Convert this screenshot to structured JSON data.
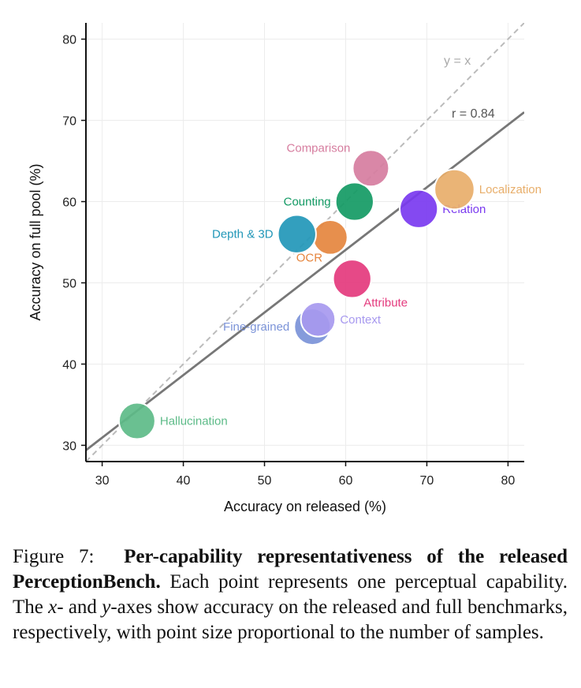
{
  "chart_data": {
    "type": "scatter",
    "title": "",
    "xlabel": "Accuracy on released (%)",
    "ylabel": "Accuracy on full pool (%)",
    "xlim": [
      28,
      82
    ],
    "ylim": [
      28,
      82
    ],
    "xticks": [
      30,
      40,
      50,
      60,
      70,
      80
    ],
    "yticks": [
      30,
      40,
      50,
      60,
      70,
      80
    ],
    "grid": true,
    "reference_line": {
      "label": "y = x",
      "color": "#bbbbbb",
      "style": "dashed"
    },
    "fit_line": {
      "label": "r = 0.84",
      "color": "#777777",
      "x": [
        28,
        82
      ],
      "y": [
        29.4,
        71.0
      ]
    },
    "points": [
      {
        "name": "Hallucination",
        "x": 34.3,
        "y": 33.0,
        "color": "#5dbb88",
        "size": 1.0,
        "label_side": "right"
      },
      {
        "name": "Fine-grained",
        "x": 55.9,
        "y": 44.6,
        "color": "#7b93d8",
        "size": 1.0,
        "label_side": "left"
      },
      {
        "name": "Context",
        "x": 56.6,
        "y": 45.5,
        "color": "#a799ef",
        "size": 0.95,
        "label_side": "right"
      },
      {
        "name": "Attribute",
        "x": 60.8,
        "y": 50.5,
        "color": "#e43a7d",
        "size": 1.05,
        "label_side": "below-right"
      },
      {
        "name": "OCR",
        "x": 58.1,
        "y": 55.6,
        "color": "#e5853e",
        "size": 0.95,
        "label_side": "below-left"
      },
      {
        "name": "Depth & 3D",
        "x": 54.0,
        "y": 56.0,
        "color": "#2297b8",
        "size": 1.05,
        "label_side": "left"
      },
      {
        "name": "Counting",
        "x": 61.1,
        "y": 60.0,
        "color": "#139a64",
        "size": 1.05,
        "label_side": "left"
      },
      {
        "name": "Comparison",
        "x": 63.1,
        "y": 64.1,
        "color": "#d67d9f",
        "size": 1.0,
        "label_side": "above-left"
      },
      {
        "name": "Relation",
        "x": 69.0,
        "y": 59.1,
        "color": "#7a3af0",
        "size": 1.05,
        "label_side": "right"
      },
      {
        "name": "Localization",
        "x": 73.4,
        "y": 61.5,
        "color": "#e8ae6a",
        "size": 1.1,
        "label_side": "right"
      }
    ]
  },
  "caption": {
    "figure_label": "Figure 7:",
    "bold_title": "Per-capability representativeness of the released PerceptionBench.",
    "body_1": "Each point represents one perceptual capability. The ",
    "x_var": "x",
    "body_2": "- and ",
    "y_var": "y",
    "body_3": "-axes show accuracy on the released and full benchmarks, respectively, with point size proportional to the number of samples."
  }
}
